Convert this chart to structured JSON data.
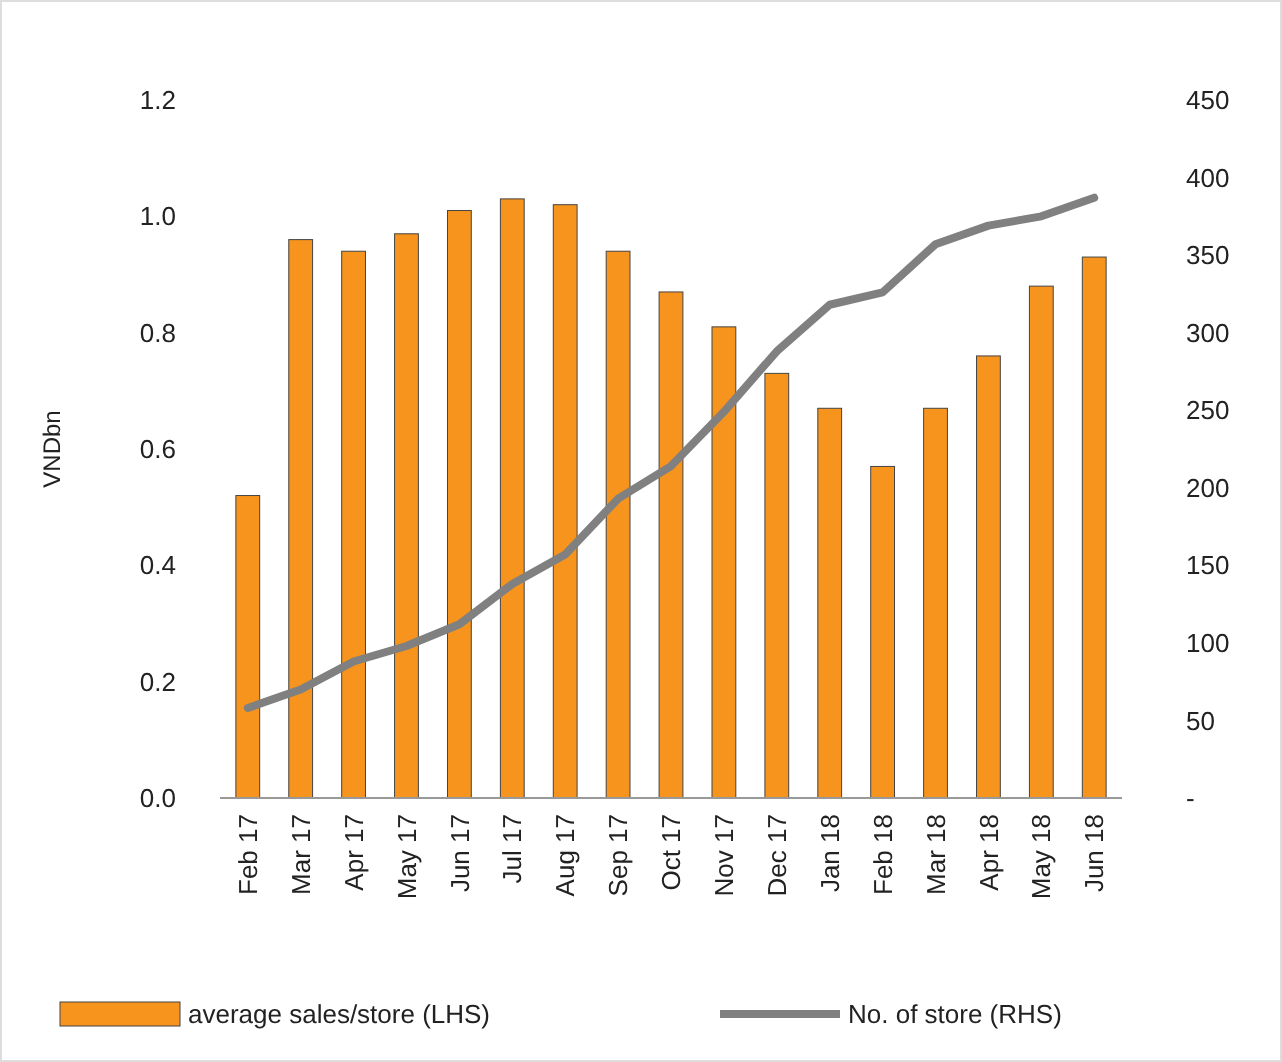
{
  "chart_data": {
    "type": "bar",
    "ylabel": "VNDbn",
    "categories": [
      "Feb 17",
      "Mar 17",
      "Apr 17",
      "May 17",
      "Jun 17",
      "Jul 17",
      "Aug 17",
      "Sep 17",
      "Oct 17",
      "Nov 17",
      "Dec 17",
      "Jan 18",
      "Feb 18",
      "Mar 18",
      "Apr 18",
      "May 18",
      "Jun 18"
    ],
    "series": [
      {
        "name": "average sales/store (LHS)",
        "color": "#f7941d",
        "values": [
          0.52,
          0.96,
          0.94,
          0.97,
          1.01,
          1.03,
          1.02,
          0.94,
          0.87,
          0.81,
          0.73,
          0.67,
          0.57,
          0.67,
          0.76,
          0.88,
          0.93
        ]
      },
      {
        "name": "No. of store (RHS)",
        "type": "line",
        "axis": "y2",
        "color": "#808080",
        "values": [
          58,
          70,
          88,
          98,
          112,
          138,
          157,
          193,
          214,
          249,
          288,
          318,
          326,
          357,
          369,
          375,
          387
        ]
      }
    ],
    "ylim": [
      0,
      1.2
    ],
    "yticks": [
      {
        "value": 0,
        "label": "0.0"
      },
      {
        "value": 0.2,
        "label": "0.2"
      },
      {
        "value": 0.4,
        "label": "0.4"
      },
      {
        "value": 0.6,
        "label": "0.6"
      },
      {
        "value": 0.8,
        "label": "0.8"
      },
      {
        "value": 1,
        "label": "1.0"
      },
      {
        "value": 1.2,
        "label": "1.2"
      }
    ],
    "y2lim": [
      0,
      450
    ],
    "y2ticks": [
      {
        "value": 0,
        "label": "-"
      },
      50,
      100,
      150,
      200,
      250,
      300,
      350,
      400,
      450
    ],
    "grid": false,
    "legend": "bottom",
    "marker": "none",
    "line_style": "solid"
  }
}
